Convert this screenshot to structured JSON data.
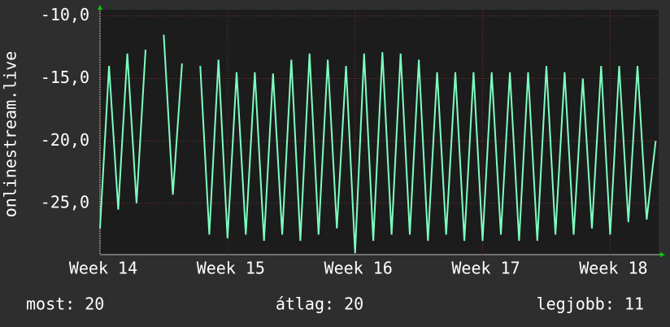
{
  "chart_data": {
    "type": "line",
    "y_label": "onlinestream.live",
    "x": [
      14.0,
      14.071,
      14.143,
      14.214,
      14.286,
      14.357,
      14.429,
      14.5,
      14.571,
      14.643,
      14.714,
      14.786,
      14.857,
      14.929,
      15.0,
      15.071,
      15.143,
      15.214,
      15.286,
      15.357,
      15.429,
      15.5,
      15.571,
      15.643,
      15.714,
      15.786,
      15.857,
      15.929,
      16.0,
      16.071,
      16.143,
      16.214,
      16.286,
      16.357,
      16.429,
      16.5,
      16.571,
      16.643,
      16.714,
      16.786,
      16.857,
      16.929,
      17.0,
      17.071,
      17.143,
      17.214,
      17.286,
      17.357,
      17.429,
      17.5,
      17.571,
      17.643,
      17.714,
      17.786,
      17.857,
      17.929,
      18.0,
      18.071,
      18.143,
      18.214,
      18.286,
      18.357
    ],
    "series": [
      {
        "color": "#7dffc0",
        "values": [
          -27,
          -14,
          -25.5,
          -13,
          -25,
          -12.7,
          null,
          -11.5,
          -24.3,
          -13.8,
          null,
          -14,
          -27.5,
          -13.5,
          -27.8,
          -14.5,
          -27.5,
          -14.5,
          -28,
          -14.6,
          -27.5,
          -13.5,
          -28,
          -13,
          -27.5,
          -13.5,
          -27,
          -14,
          -29,
          -13,
          -28,
          -12.9,
          -27.5,
          -13,
          -27.5,
          -13.5,
          -28,
          -14.5,
          -27.5,
          -14.5,
          -28,
          -14.5,
          -28,
          -14.5,
          -27.5,
          -14.5,
          -28,
          -14.5,
          -28,
          -14,
          -27.5,
          -14.5,
          -27.5,
          -15,
          -27,
          -14,
          -27.5,
          -14,
          -26.5,
          -14,
          -26.3,
          -20
        ]
      }
    ],
    "xlim": [
      14,
      18.38
    ],
    "xticks": [
      {
        "value": 14,
        "label": "Week 14"
      },
      {
        "value": 15,
        "label": "Week 15"
      },
      {
        "value": 16,
        "label": "Week 16"
      },
      {
        "value": 17,
        "label": "Week 17"
      },
      {
        "value": 18,
        "label": "Week 18"
      }
    ],
    "ylim": [
      -29.1,
      -9.5
    ],
    "yticks": [
      {
        "value": -10,
        "label": "-10,0"
      },
      {
        "value": -15,
        "label": "-15,0"
      },
      {
        "value": -20,
        "label": "-20,0"
      },
      {
        "value": -25,
        "label": "-25,0"
      }
    ],
    "grid": true
  },
  "footer": [
    "most: 20",
    "átlag: 20",
    "legjobb: 11"
  ]
}
